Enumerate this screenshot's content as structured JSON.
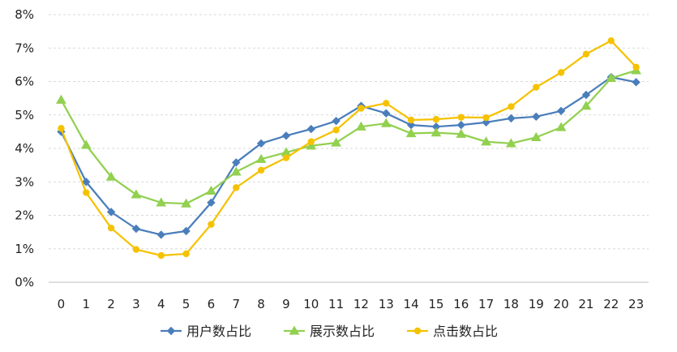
{
  "chart_data": {
    "type": "line",
    "x": [
      "0",
      "1",
      "2",
      "3",
      "4",
      "5",
      "6",
      "7",
      "8",
      "9",
      "10",
      "11",
      "12",
      "13",
      "14",
      "15",
      "16",
      "17",
      "18",
      "19",
      "20",
      "21",
      "22",
      "23"
    ],
    "ylim": [
      0,
      8
    ],
    "yticks": [
      "0%",
      "1%",
      "2%",
      "3%",
      "4%",
      "5%",
      "6%",
      "7%",
      "8%"
    ],
    "grid": "horizontal dashed",
    "legend_position": "bottom",
    "series": [
      {
        "name": "用户数占比",
        "color": "#4a7ebb",
        "marker": "diamond",
        "values": [
          4.5,
          3.0,
          2.1,
          1.6,
          1.42,
          1.53,
          2.38,
          3.58,
          4.15,
          4.38,
          4.58,
          4.82,
          5.27,
          5.05,
          4.7,
          4.65,
          4.7,
          4.78,
          4.9,
          4.95,
          5.12,
          5.6,
          6.13,
          5.98
        ]
      },
      {
        "name": "展示数占比",
        "color": "#92d050",
        "marker": "triangle",
        "values": [
          5.45,
          4.1,
          3.15,
          2.62,
          2.38,
          2.35,
          2.73,
          3.3,
          3.68,
          3.88,
          4.08,
          4.17,
          4.65,
          4.75,
          4.45,
          4.47,
          4.43,
          4.2,
          4.15,
          4.33,
          4.63,
          5.27,
          6.1,
          6.33
        ]
      },
      {
        "name": "点击数占比",
        "color": "#f5c200",
        "marker": "circle",
        "values": [
          4.6,
          2.68,
          1.62,
          0.98,
          0.8,
          0.85,
          1.73,
          2.83,
          3.35,
          3.72,
          4.2,
          4.55,
          5.2,
          5.35,
          4.85,
          4.87,
          4.93,
          4.92,
          5.25,
          5.83,
          6.27,
          6.82,
          7.22,
          6.43
        ]
      }
    ]
  }
}
